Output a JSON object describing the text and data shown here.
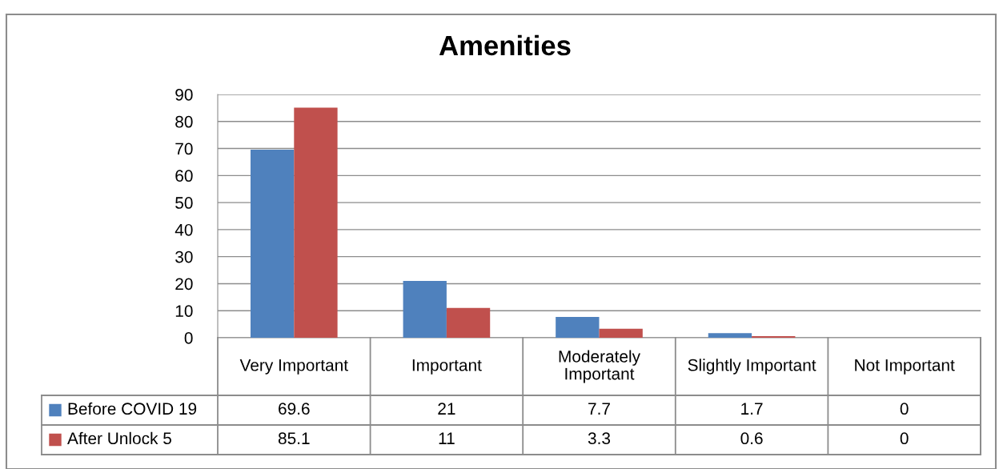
{
  "chart_data": {
    "type": "bar",
    "title": "Amenities",
    "categories": [
      "Very Important",
      "Important",
      "Moderately Important",
      "Slightly Important",
      "Not Important"
    ],
    "series": [
      {
        "name": "Before COVID 19",
        "color": "#4f81bd",
        "values": [
          69.6,
          21,
          7.7,
          1.7,
          0
        ]
      },
      {
        "name": "After Unlock 5",
        "color": "#c0504d",
        "values": [
          85.1,
          11,
          3.3,
          0.6,
          0
        ]
      }
    ],
    "ylim": [
      0,
      90
    ],
    "yticks": [
      0,
      10,
      20,
      30,
      40,
      50,
      60,
      70,
      80,
      90
    ],
    "grid": "y",
    "data_labels": true,
    "legend": "bottom left"
  }
}
